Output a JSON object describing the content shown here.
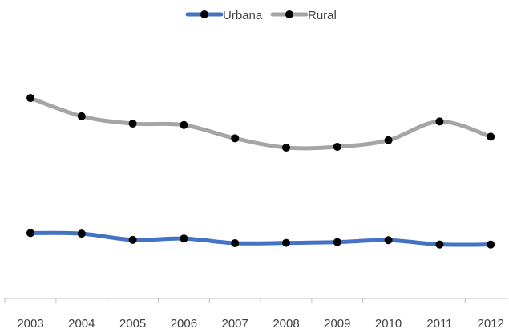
{
  "chart_data": {
    "type": "line",
    "title": "",
    "xlabel": "",
    "ylabel": "",
    "x": [
      "2003",
      "2004",
      "2005",
      "2006",
      "2007",
      "2008",
      "2009",
      "2010",
      "2011",
      "2012"
    ],
    "ylim": [
      0,
      100
    ],
    "grid": false,
    "y_axis_visible": false,
    "legend": "top-center",
    "smooth": true,
    "series": [
      {
        "name": "Urbana",
        "color": "#4472C4",
        "values": [
          24,
          23.8,
          21.5,
          22,
          20.3,
          20.4,
          20.7,
          21.4,
          19.8,
          19.8
        ]
      },
      {
        "name": "Rural",
        "color": "#A5A5A5",
        "values": [
          73.5,
          66.8,
          64.1,
          63.6,
          58.7,
          55.3,
          55.6,
          58,
          64.9,
          59.3
        ]
      }
    ],
    "marker_color": "#000000"
  }
}
